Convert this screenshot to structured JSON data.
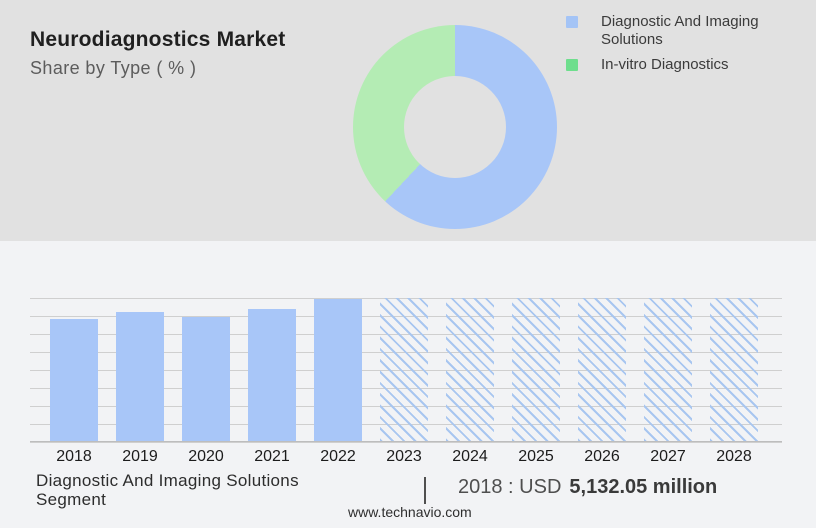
{
  "header": {
    "title": "Neurodiagnostics Market",
    "subtitle": "Share by Type ( % )"
  },
  "legend": {
    "items": [
      {
        "label": "Diagnostic And Imaging Solutions",
        "color": "#A4C4F6"
      },
      {
        "label": "In-vitro Diagnostics",
        "color": "#6EDE8D"
      }
    ]
  },
  "footer": {
    "segment_label": "Diagnostic And Imaging Solutions Segment",
    "value_prefix": "2018 : USD",
    "value_bold": "5,132.05 million",
    "website": "www.technavio.com"
  },
  "colors": {
    "top-bg": "#E1E1E1",
    "bottom-bg": "#F2F3F5",
    "accent-blue": "#A8C6F8",
    "accent-green": "#B4ECB4",
    "hatch": "#A8C6F0",
    "gridline": "#CFCFCF",
    "axis": "#BDBDBD"
  },
  "chart_data": [
    {
      "type": "pie",
      "donut": true,
      "title": "Share by Type ( % )",
      "legend_position": "top-right",
      "slices": [
        {
          "label": "Diagnostic And Imaging Solutions",
          "value": 62,
          "color": "#A8C6F8"
        },
        {
          "label": "In-vitro Diagnostics",
          "value": 38,
          "color": "#B4ECB4"
        }
      ],
      "note": "percentages estimated from arc angles; no numeric labels shown"
    },
    {
      "type": "bar",
      "categories": [
        "2018",
        "2019",
        "2020",
        "2021",
        "2022",
        "2023",
        "2024",
        "2025",
        "2026",
        "2027",
        "2028"
      ],
      "series": [
        {
          "name": "Diagnostic And Imaging Solutions Segment",
          "relative_heights": [
            0.85,
            0.9,
            0.87,
            0.92,
            0.99,
            1,
            1,
            1,
            1,
            1,
            1
          ]
        }
      ],
      "solid_years": [
        "2018",
        "2019",
        "2020",
        "2021",
        "2022"
      ],
      "forecast_years": [
        "2023",
        "2024",
        "2025",
        "2026",
        "2027",
        "2028"
      ],
      "known_values": {
        "2018": "USD 5,132.05 million"
      },
      "xlabel": "",
      "ylabel": "",
      "ylim": [
        0,
        1
      ],
      "grid": true,
      "note": "no y-axis labels shown; forecast years drawn as full-height hatched bars"
    }
  ]
}
